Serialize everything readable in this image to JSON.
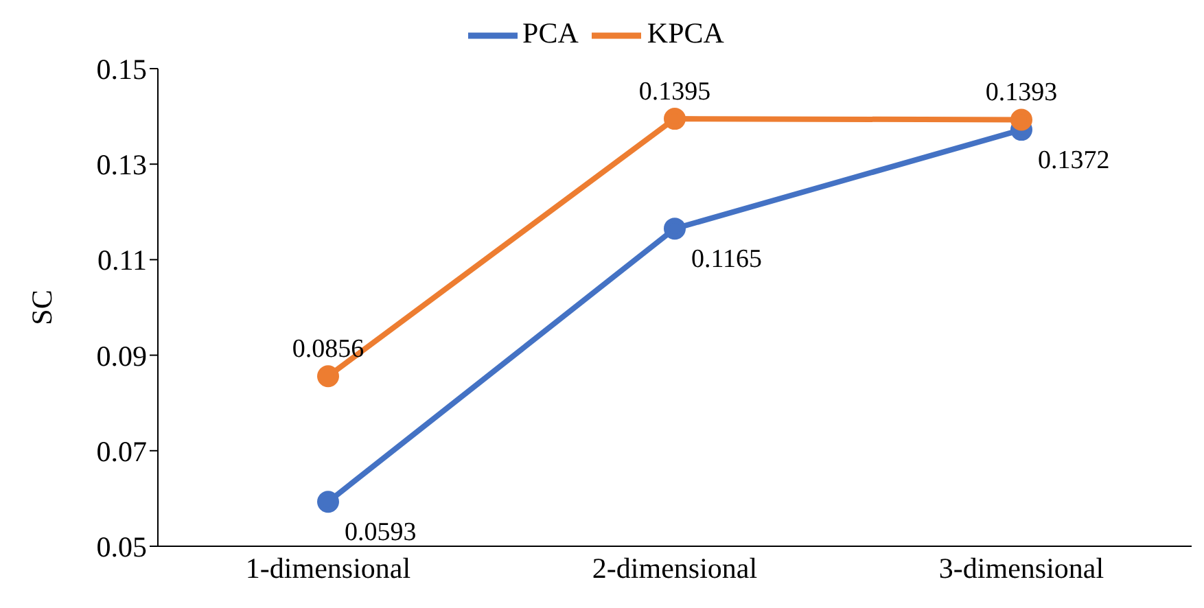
{
  "chart_data": {
    "type": "line",
    "ylabel": "SC",
    "categories": [
      "1-dimensional",
      "2-dimensional",
      "3-dimensional"
    ],
    "series": [
      {
        "name": "PCA",
        "color": "#4472c4",
        "values": [
          0.0593,
          0.1165,
          0.1372
        ]
      },
      {
        "name": "KPCA",
        "color": "#ed7d31",
        "values": [
          0.0856,
          0.1395,
          0.1393
        ]
      }
    ],
    "ylim": [
      0.05,
      0.15
    ],
    "yticks": [
      0.05,
      0.07,
      0.09,
      0.11,
      0.13,
      0.15
    ],
    "data_labels": true,
    "legend": "top",
    "marker": "circle",
    "line_style": "solid",
    "grid": false
  }
}
